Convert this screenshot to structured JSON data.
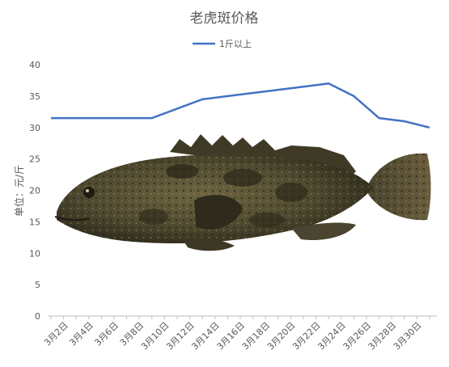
{
  "chart_data": {
    "type": "line",
    "title": "老虎斑价格",
    "ylabel": "单位：元/斤",
    "xlabel": "",
    "legend_position": "top",
    "grid": false,
    "ylim": [
      0,
      40
    ],
    "y_ticks": [
      0,
      5,
      10,
      15,
      20,
      25,
      30,
      35,
      40
    ],
    "x_tick_labels": [
      "3月2日",
      "3月4日",
      "3月6日",
      "3月8日",
      "3月10日",
      "3月12日",
      "3月14日",
      "3月16日",
      "3月18日",
      "3月20日",
      "3月22日",
      "3月24日",
      "3月26日",
      "3月28日",
      "3月30日"
    ],
    "x_index_range": [
      1,
      31
    ],
    "series": [
      {
        "name": "1斤以上",
        "color": "#4472C4",
        "x": [
          1,
          3,
          5,
          7,
          9,
          11,
          13,
          15,
          17,
          19,
          21,
          23,
          25,
          27,
          29,
          31
        ],
        "y": [
          31.5,
          31.5,
          31.5,
          31.5,
          31.5,
          33,
          34.5,
          35,
          35.5,
          36,
          36.5,
          37,
          35,
          31.5,
          31,
          30
        ]
      }
    ],
    "background_image": "grouper-fish-photo"
  }
}
